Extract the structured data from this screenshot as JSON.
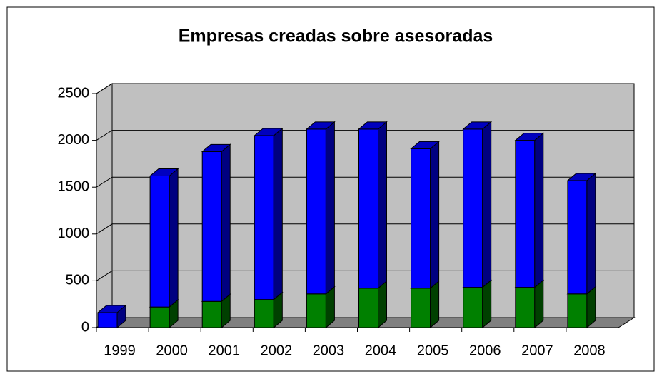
{
  "chart_data": {
    "type": "bar3d_stacked",
    "title": "Empresas creadas sobre asesoradas",
    "categories": [
      "1999",
      "2000",
      "2001",
      "2002",
      "2003",
      "2004",
      "2005",
      "2006",
      "2007",
      "2008"
    ],
    "series": [
      {
        "color": "#008000",
        "values": [
          0,
          220,
          280,
          300,
          360,
          420,
          420,
          430,
          430,
          360
        ]
      },
      {
        "color": "#0000ff",
        "values": [
          160,
          1400,
          1600,
          1750,
          1760,
          1700,
          1490,
          1690,
          1570,
          1210
        ]
      }
    ],
    "ylim": [
      0,
      2500
    ],
    "yticks": [
      0,
      500,
      1000,
      1500,
      2000,
      2500
    ],
    "grid": true
  }
}
